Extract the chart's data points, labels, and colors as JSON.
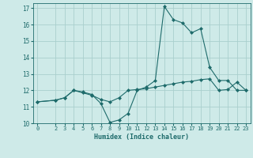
{
  "xlabel": "Humidex (Indice chaleur)",
  "xlim": [
    -0.5,
    23.5
  ],
  "ylim": [
    10,
    17.3
  ],
  "yticks": [
    10,
    11,
    12,
    13,
    14,
    15,
    16,
    17
  ],
  "xticks": [
    0,
    2,
    3,
    4,
    5,
    6,
    7,
    8,
    9,
    10,
    11,
    12,
    13,
    14,
    15,
    16,
    17,
    18,
    19,
    20,
    21,
    22,
    23
  ],
  "bg_color": "#ceeae8",
  "grid_color": "#aacfcd",
  "line_color": "#1e6b6b",
  "line1_x": [
    0,
    2,
    3,
    4,
    5,
    6,
    7,
    8,
    9,
    10,
    11,
    12,
    13,
    14,
    15,
    16,
    17,
    18,
    19,
    20,
    21,
    22,
    23
  ],
  "line1_y": [
    11.3,
    11.4,
    11.55,
    12.0,
    11.9,
    11.75,
    11.2,
    10.05,
    10.2,
    10.6,
    12.0,
    12.2,
    12.6,
    17.1,
    16.3,
    16.1,
    15.5,
    15.75,
    13.4,
    12.6,
    12.6,
    12.0,
    12.0
  ],
  "line2_x": [
    0,
    2,
    3,
    4,
    5,
    6,
    7,
    8,
    9,
    10,
    11,
    12,
    13,
    14,
    15,
    16,
    17,
    18,
    19,
    20,
    21,
    22,
    23
  ],
  "line2_y": [
    11.3,
    11.4,
    11.55,
    12.0,
    11.85,
    11.7,
    11.45,
    11.3,
    11.55,
    12.0,
    12.05,
    12.1,
    12.2,
    12.3,
    12.4,
    12.5,
    12.55,
    12.65,
    12.7,
    12.0,
    12.05,
    12.5,
    12.0
  ]
}
